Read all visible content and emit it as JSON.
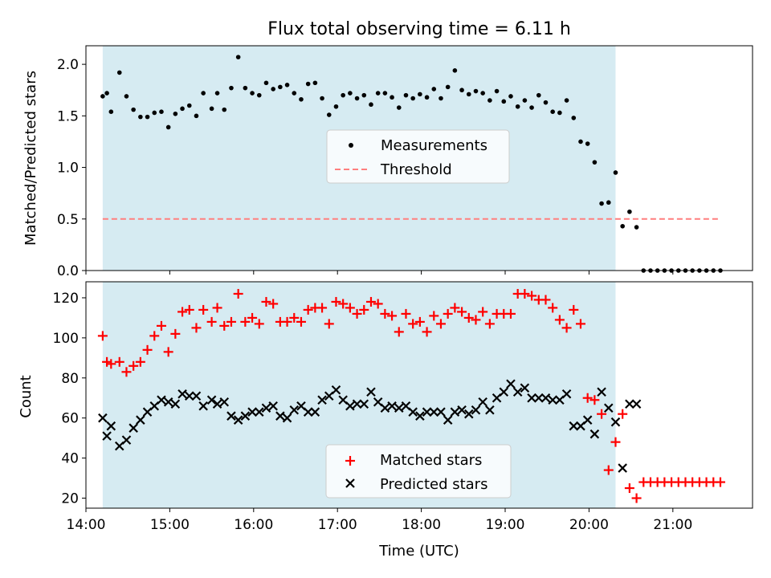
{
  "chart_data": [
    {
      "type": "scatter",
      "title": "Flux total observing time = 6.11 h",
      "xlabel": "",
      "ylabel": "Matched/Predicted stars",
      "xlim": [
        "14:00",
        "21:57"
      ],
      "ylim": [
        0,
        2.18
      ],
      "yticks": [
        "0.0",
        "0.5",
        "1.0",
        "1.5",
        "2.0"
      ],
      "observing_window": [
        "14:12",
        "20:19"
      ],
      "legend_position": "center",
      "colors": {
        "measurements": "#000000",
        "threshold": "#ff7f7f",
        "window": "#add8e6"
      },
      "series": [
        {
          "name": "Measurements",
          "x": [
            "14:12",
            "14:15",
            "14:18",
            "14:24",
            "14:29",
            "14:34",
            "14:39",
            "14:44",
            "14:49",
            "14:54",
            "14:59",
            "15:04",
            "15:09",
            "15:14",
            "15:19",
            "15:24",
            "15:30",
            "15:34",
            "15:39",
            "15:44",
            "15:49",
            "15:54",
            "15:59",
            "16:04",
            "16:09",
            "16:14",
            "16:19",
            "16:24",
            "16:29",
            "16:34",
            "16:39",
            "16:44",
            "16:49",
            "16:54",
            "16:59",
            "17:04",
            "17:09",
            "17:14",
            "17:19",
            "17:24",
            "17:29",
            "17:34",
            "17:39",
            "17:44",
            "17:49",
            "17:54",
            "17:59",
            "18:04",
            "18:09",
            "18:14",
            "18:19",
            "18:24",
            "18:29",
            "18:34",
            "18:39",
            "18:44",
            "18:49",
            "18:54",
            "18:59",
            "19:04",
            "19:09",
            "19:14",
            "19:19",
            "19:24",
            "19:29",
            "19:34",
            "19:39",
            "19:44",
            "19:49",
            "19:54",
            "19:59",
            "20:04",
            "20:09",
            "20:14",
            "20:19",
            "20:24",
            "20:29",
            "20:34",
            "20:39",
            "20:44",
            "20:49",
            "20:54",
            "20:59",
            "21:04",
            "21:09",
            "21:14",
            "21:19",
            "21:24",
            "21:29",
            "21:34"
          ],
          "y": [
            1.69,
            1.72,
            1.54,
            1.92,
            1.69,
            1.56,
            1.49,
            1.49,
            1.53,
            1.54,
            1.39,
            1.52,
            1.57,
            1.6,
            1.5,
            1.72,
            1.57,
            1.72,
            1.56,
            1.77,
            2.07,
            1.77,
            1.72,
            1.7,
            1.82,
            1.76,
            1.78,
            1.8,
            1.72,
            1.66,
            1.81,
            1.82,
            1.67,
            1.51,
            1.59,
            1.7,
            1.72,
            1.67,
            1.7,
            1.61,
            1.72,
            1.72,
            1.68,
            1.58,
            1.7,
            1.67,
            1.71,
            1.68,
            1.76,
            1.67,
            1.78,
            1.94,
            1.75,
            1.71,
            1.74,
            1.72,
            1.65,
            1.74,
            1.64,
            1.69,
            1.59,
            1.65,
            1.58,
            1.7,
            1.63,
            1.54,
            1.53,
            1.65,
            1.48,
            1.25,
            1.23,
            1.05,
            0.65,
            0.66,
            0.95,
            0.43,
            0.57,
            0.42,
            0,
            0,
            0,
            0,
            0,
            0,
            0,
            0,
            0,
            0,
            0,
            0
          ]
        },
        {
          "name": "Threshold",
          "kind": "hline",
          "x": [
            "14:12",
            "21:34"
          ],
          "y": [
            0.5,
            0.5
          ]
        }
      ]
    },
    {
      "type": "scatter",
      "title": "",
      "xlabel": "Time (UTC)",
      "ylabel": "Count",
      "xlim": [
        "14:00",
        "21:57"
      ],
      "ylim": [
        15,
        128
      ],
      "yticks": [
        "20",
        "40",
        "60",
        "80",
        "100",
        "120"
      ],
      "xticks": [
        "14:00",
        "15:00",
        "16:00",
        "17:00",
        "18:00",
        "19:00",
        "20:00",
        "21:00"
      ],
      "observing_window": [
        "14:12",
        "20:19"
      ],
      "legend_position": "bottom-center",
      "colors": {
        "matched": "#ff0000",
        "predicted": "#000000",
        "window": "#add8e6"
      },
      "series": [
        {
          "name": "Matched stars",
          "marker": "plus",
          "x": [
            "14:12",
            "14:15",
            "14:18",
            "14:24",
            "14:29",
            "14:34",
            "14:39",
            "14:44",
            "14:49",
            "14:54",
            "14:59",
            "15:04",
            "15:09",
            "15:14",
            "15:19",
            "15:24",
            "15:30",
            "15:34",
            "15:39",
            "15:44",
            "15:49",
            "15:54",
            "15:59",
            "16:04",
            "16:09",
            "16:14",
            "16:19",
            "16:24",
            "16:29",
            "16:34",
            "16:39",
            "16:44",
            "16:49",
            "16:54",
            "16:59",
            "17:04",
            "17:09",
            "17:14",
            "17:19",
            "17:24",
            "17:29",
            "17:34",
            "17:39",
            "17:44",
            "17:49",
            "17:54",
            "17:59",
            "18:04",
            "18:09",
            "18:14",
            "18:19",
            "18:24",
            "18:29",
            "18:34",
            "18:39",
            "18:44",
            "18:49",
            "18:54",
            "18:59",
            "19:04",
            "19:09",
            "19:14",
            "19:19",
            "19:24",
            "19:29",
            "19:34",
            "19:39",
            "19:44",
            "19:49",
            "19:54",
            "19:59",
            "20:04",
            "20:09",
            "20:14",
            "20:19",
            "20:24",
            "20:29",
            "20:34",
            "20:39",
            "20:44",
            "20:49",
            "20:54",
            "20:59",
            "21:04",
            "21:09",
            "21:14",
            "21:19",
            "21:24",
            "21:29",
            "21:34"
          ],
          "y": [
            101,
            88,
            87,
            88,
            83,
            86,
            88,
            94,
            101,
            106,
            93,
            102,
            113,
            114,
            105,
            114,
            108,
            115,
            106,
            108,
            122,
            108,
            110,
            107,
            118,
            117,
            108,
            108,
            110,
            108,
            114,
            115,
            115,
            107,
            118,
            117,
            115,
            112,
            114,
            118,
            117,
            112,
            111,
            103,
            112,
            107,
            108,
            103,
            111,
            107,
            112,
            115,
            113,
            110,
            109,
            113,
            107,
            112,
            112,
            112,
            122,
            122,
            121,
            119,
            119,
            115,
            109,
            105,
            114,
            107,
            70,
            69,
            62,
            34,
            48,
            62,
            25,
            20,
            28,
            28,
            28,
            28,
            28,
            28,
            28,
            28,
            28,
            28,
            28,
            28
          ]
        },
        {
          "name": "Predicted stars",
          "marker": "x",
          "x": [
            "14:12",
            "14:15",
            "14:18",
            "14:24",
            "14:29",
            "14:34",
            "14:39",
            "14:44",
            "14:49",
            "14:54",
            "14:59",
            "15:04",
            "15:09",
            "15:14",
            "15:19",
            "15:24",
            "15:30",
            "15:34",
            "15:39",
            "15:44",
            "15:49",
            "15:54",
            "15:59",
            "16:04",
            "16:09",
            "16:14",
            "16:19",
            "16:24",
            "16:29",
            "16:34",
            "16:39",
            "16:44",
            "16:49",
            "16:54",
            "16:59",
            "17:04",
            "17:09",
            "17:14",
            "17:19",
            "17:24",
            "17:29",
            "17:34",
            "17:39",
            "17:44",
            "17:49",
            "17:54",
            "17:59",
            "18:04",
            "18:09",
            "18:14",
            "18:19",
            "18:24",
            "18:29",
            "18:34",
            "18:39",
            "18:44",
            "18:49",
            "18:54",
            "18:59",
            "19:04",
            "19:09",
            "19:14",
            "19:19",
            "19:24",
            "19:29",
            "19:34",
            "19:39",
            "19:44",
            "19:49",
            "19:54",
            "19:59",
            "20:04",
            "20:09",
            "20:14",
            "20:19",
            "20:24",
            "20:29",
            "20:34"
          ],
          "y": [
            60,
            51,
            56,
            46,
            49,
            55,
            59,
            63,
            66,
            69,
            68,
            67,
            72,
            71,
            71,
            66,
            69,
            67,
            68,
            61,
            59,
            61,
            63,
            63,
            65,
            66,
            61,
            60,
            64,
            66,
            63,
            63,
            69,
            71,
            74,
            69,
            66,
            67,
            67,
            73,
            68,
            65,
            66,
            65,
            66,
            63,
            61,
            63,
            63,
            63,
            59,
            63,
            64,
            62,
            64,
            68,
            64,
            70,
            73,
            77,
            73,
            75,
            70,
            70,
            70,
            69,
            69,
            72,
            56,
            56,
            59,
            52,
            73,
            65,
            58,
            35,
            67,
            67
          ]
        }
      ]
    }
  ]
}
